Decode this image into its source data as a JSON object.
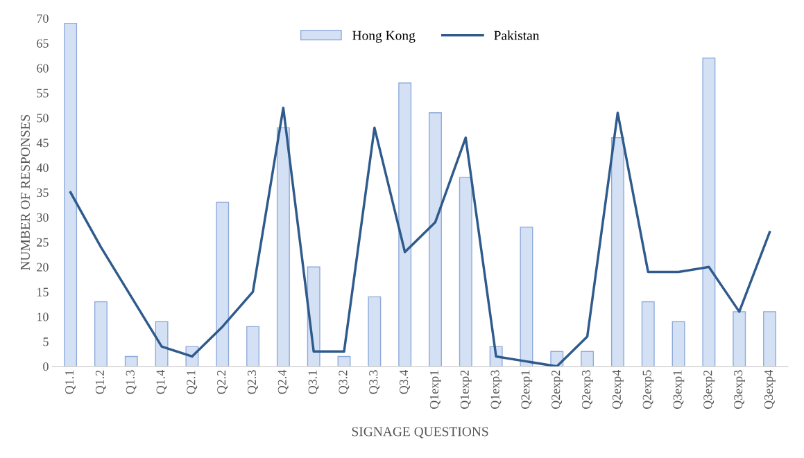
{
  "chart_data": {
    "type": "bar",
    "xlabel": "SIGNAGE QUESTIONS",
    "ylabel": "NUMBER OF RESPONSES",
    "categories": [
      "Q1.1",
      "Q1.2",
      "Q1.3",
      "Q1.4",
      "Q2.1",
      "Q2.2",
      "Q2.3",
      "Q2.4",
      "Q3.1",
      "Q3.2",
      "Q3.3",
      "Q3.4",
      "Q1exp1",
      "Q1exp2",
      "Q1exp3",
      "Q2exp1",
      "Q2exp2",
      "Q2exp3",
      "Q2exp4",
      "Q2exp5",
      "Q3exp1",
      "Q3exp2",
      "Q3exp3",
      "Q3exp4"
    ],
    "series": [
      {
        "name": "Hong Kong",
        "color": "#d4e1f5",
        "values": [
          69,
          13,
          2,
          9,
          4,
          33,
          8,
          48,
          20,
          2,
          14,
          57,
          51,
          38,
          4,
          28,
          3,
          3,
          46,
          13,
          9,
          62,
          11,
          11
        ]
      },
      {
        "name": "Pakistan",
        "type": "line",
        "color": "#2f5b8c",
        "values": [
          35,
          24,
          14,
          4,
          2,
          8,
          15,
          52,
          3,
          3,
          48,
          23,
          29,
          46,
          2,
          1,
          0,
          6,
          51,
          19,
          19,
          20,
          11,
          27
        ]
      }
    ],
    "ylim": [
      0,
      70
    ],
    "yticks": [
      0,
      5,
      10,
      15,
      20,
      25,
      30,
      35,
      40,
      45,
      50,
      55,
      60,
      65,
      70
    ],
    "grid": false,
    "legend": "top",
    "marker": "none",
    "line_style": "solid"
  }
}
